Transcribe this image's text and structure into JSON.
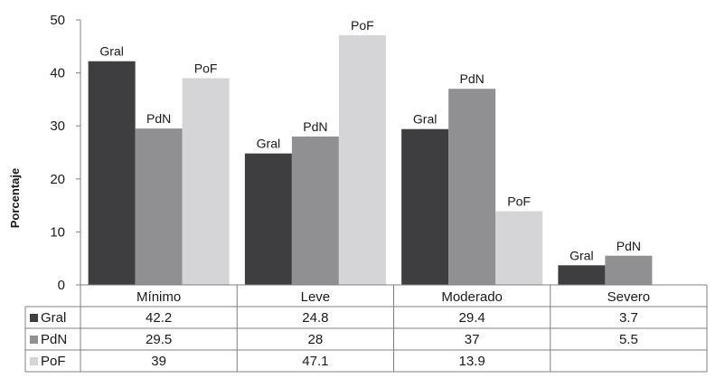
{
  "chart_data": {
    "type": "bar",
    "categories": [
      "Mínimo",
      "Leve",
      "Moderado",
      "Severo"
    ],
    "series": [
      {
        "name": "Gral",
        "values": [
          42.2,
          24.8,
          29.4,
          3.7
        ],
        "color": "#3e3e40"
      },
      {
        "name": "PdN",
        "values": [
          29.5,
          28,
          37,
          5.5
        ],
        "color": "#909092"
      },
      {
        "name": "PoF",
        "values": [
          39,
          47.1,
          13.9,
          null
        ],
        "color": "#d5d5d7"
      }
    ],
    "ylabel": "Porcentaje",
    "ylim": [
      0,
      50
    ],
    "yticks": [
      0,
      10,
      20,
      30,
      40,
      50
    ],
    "bar_labels": "series-name",
    "data_table": true,
    "legend": "data-table-row-keys",
    "grid": false
  }
}
